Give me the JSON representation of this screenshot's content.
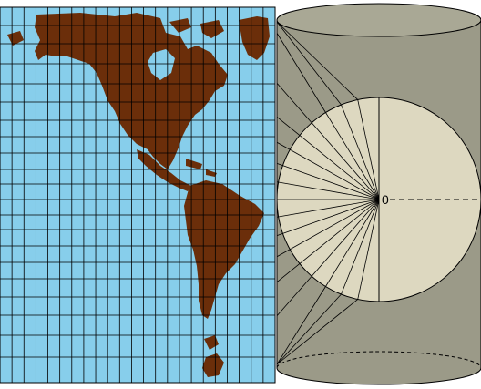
{
  "diagram": {
    "center_label": "0"
  },
  "colors": {
    "ocean": "#87ceeb",
    "land": "#6b2e0a",
    "cylinder": "#9b9a88",
    "cylinder_top": "#a9a895",
    "globe_disc": "#ddd8c0",
    "grid_line": "#000000",
    "outline": "#000000"
  }
}
